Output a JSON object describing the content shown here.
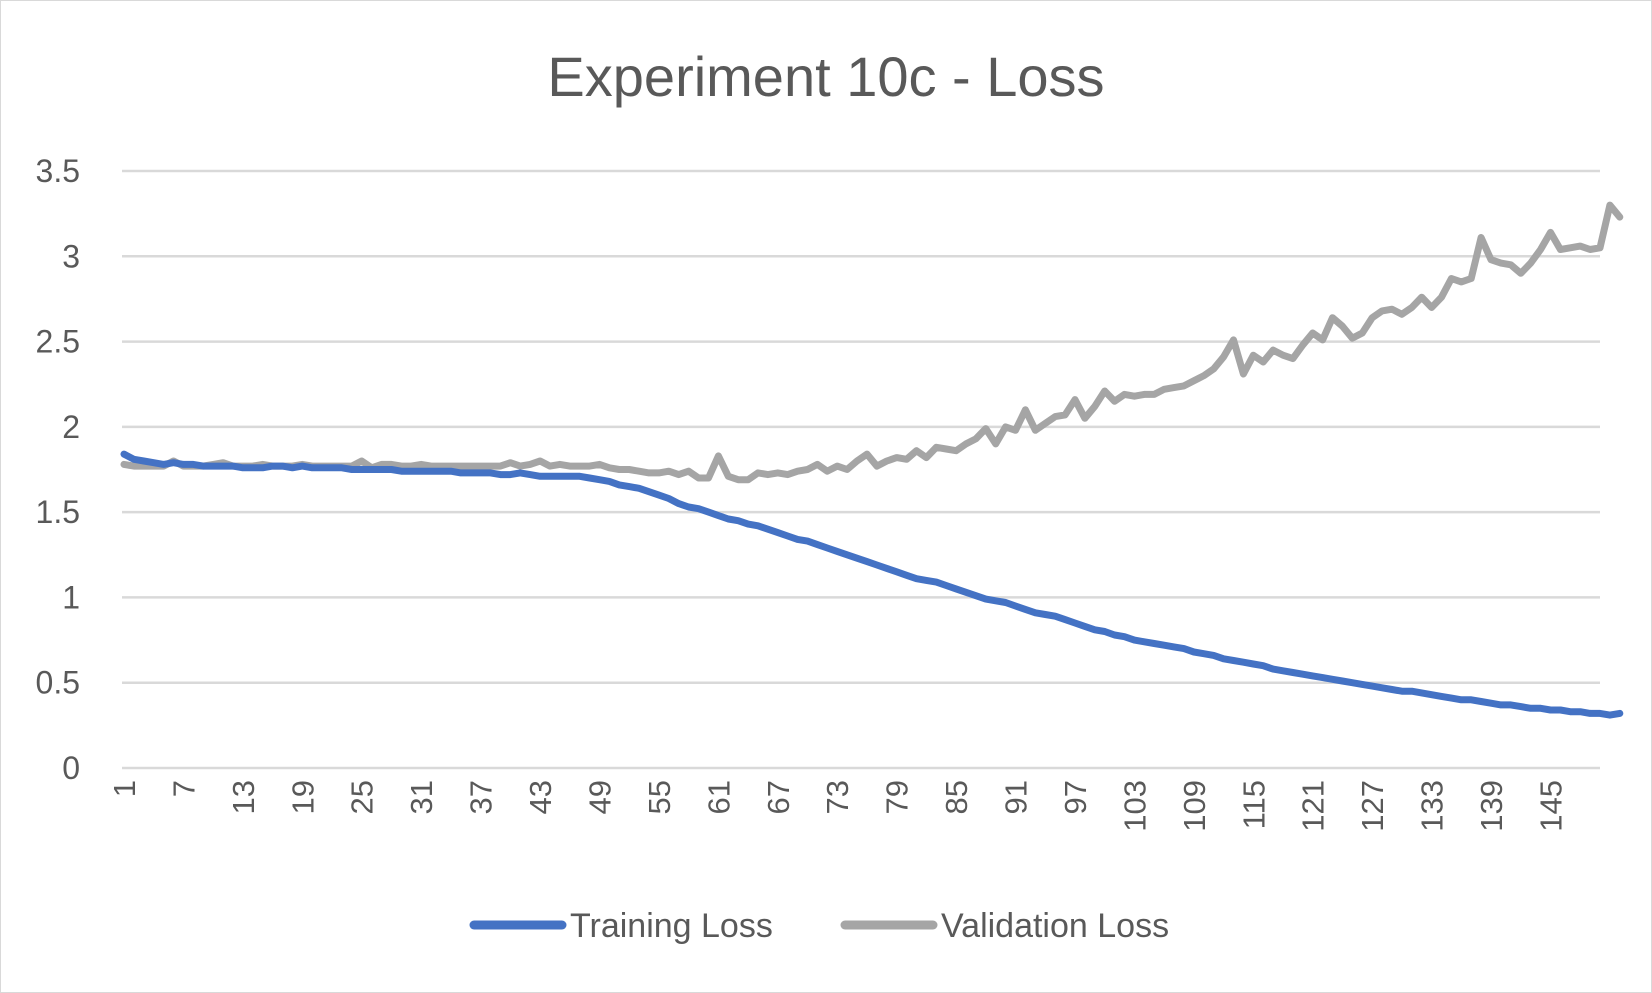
{
  "chart_data": {
    "type": "line",
    "title": "Experiment 10c - Loss",
    "xlabel": "",
    "ylabel": "",
    "ylim": [
      0,
      3.5
    ],
    "yticks": [
      "0",
      "0.5",
      "1",
      "1.5",
      "2",
      "2.5",
      "3",
      "3.5"
    ],
    "x_range": [
      1,
      150
    ],
    "xticks": [
      "1",
      "7",
      "13",
      "19",
      "25",
      "31",
      "37",
      "43",
      "49",
      "55",
      "61",
      "67",
      "73",
      "79",
      "85",
      "91",
      "97",
      "103",
      "109",
      "115",
      "121",
      "127",
      "133",
      "139",
      "145"
    ],
    "grid": "horizontal",
    "legend_position": "bottom",
    "series": [
      {
        "name": "Training Loss",
        "color": "#4472c4",
        "values": [
          1.84,
          1.81,
          1.8,
          1.79,
          1.78,
          1.79,
          1.78,
          1.78,
          1.77,
          1.77,
          1.77,
          1.77,
          1.76,
          1.76,
          1.76,
          1.77,
          1.77,
          1.76,
          1.77,
          1.76,
          1.76,
          1.76,
          1.76,
          1.75,
          1.75,
          1.75,
          1.75,
          1.75,
          1.74,
          1.74,
          1.74,
          1.74,
          1.74,
          1.74,
          1.73,
          1.73,
          1.73,
          1.73,
          1.72,
          1.72,
          1.73,
          1.72,
          1.71,
          1.71,
          1.71,
          1.71,
          1.71,
          1.7,
          1.69,
          1.68,
          1.66,
          1.65,
          1.64,
          1.62,
          1.6,
          1.58,
          1.55,
          1.53,
          1.52,
          1.5,
          1.48,
          1.46,
          1.45,
          1.43,
          1.42,
          1.4,
          1.38,
          1.36,
          1.34,
          1.33,
          1.31,
          1.29,
          1.27,
          1.25,
          1.23,
          1.21,
          1.19,
          1.17,
          1.15,
          1.13,
          1.11,
          1.1,
          1.09,
          1.07,
          1.05,
          1.03,
          1.01,
          0.99,
          0.98,
          0.97,
          0.95,
          0.93,
          0.91,
          0.9,
          0.89,
          0.87,
          0.85,
          0.83,
          0.81,
          0.8,
          0.78,
          0.77,
          0.75,
          0.74,
          0.73,
          0.72,
          0.71,
          0.7,
          0.68,
          0.67,
          0.66,
          0.64,
          0.63,
          0.62,
          0.61,
          0.6,
          0.58,
          0.57,
          0.56,
          0.55,
          0.54,
          0.53,
          0.52,
          0.51,
          0.5,
          0.49,
          0.48,
          0.47,
          0.46,
          0.45,
          0.45,
          0.44,
          0.43,
          0.42,
          0.41,
          0.4,
          0.4,
          0.39,
          0.38,
          0.37,
          0.37,
          0.36,
          0.35,
          0.35,
          0.34,
          0.34,
          0.33,
          0.33,
          0.32,
          0.32,
          0.31,
          0.32
        ]
      },
      {
        "name": "Validation Loss",
        "color": "#a5a5a5",
        "values": [
          1.78,
          1.77,
          1.77,
          1.77,
          1.77,
          1.8,
          1.77,
          1.77,
          1.77,
          1.78,
          1.79,
          1.77,
          1.77,
          1.77,
          1.78,
          1.77,
          1.77,
          1.77,
          1.78,
          1.77,
          1.77,
          1.77,
          1.77,
          1.77,
          1.8,
          1.76,
          1.78,
          1.78,
          1.77,
          1.77,
          1.78,
          1.77,
          1.77,
          1.77,
          1.77,
          1.77,
          1.77,
          1.77,
          1.77,
          1.79,
          1.77,
          1.78,
          1.8,
          1.77,
          1.78,
          1.77,
          1.77,
          1.77,
          1.78,
          1.76,
          1.75,
          1.75,
          1.74,
          1.73,
          1.73,
          1.74,
          1.72,
          1.74,
          1.7,
          1.7,
          1.83,
          1.71,
          1.69,
          1.69,
          1.73,
          1.72,
          1.73,
          1.72,
          1.74,
          1.75,
          1.78,
          1.74,
          1.77,
          1.75,
          1.8,
          1.84,
          1.77,
          1.8,
          1.82,
          1.81,
          1.86,
          1.82,
          1.88,
          1.87,
          1.86,
          1.9,
          1.93,
          1.99,
          1.9,
          2.0,
          1.98,
          2.1,
          1.98,
          2.02,
          2.06,
          2.07,
          2.16,
          2.05,
          2.12,
          2.21,
          2.15,
          2.19,
          2.18,
          2.19,
          2.19,
          2.22,
          2.23,
          2.24,
          2.27,
          2.3,
          2.34,
          2.41,
          2.51,
          2.31,
          2.42,
          2.38,
          2.45,
          2.42,
          2.4,
          2.48,
          2.55,
          2.51,
          2.64,
          2.59,
          2.52,
          2.55,
          2.64,
          2.68,
          2.69,
          2.66,
          2.7,
          2.76,
          2.7,
          2.76,
          2.87,
          2.85,
          2.87,
          3.11,
          2.98,
          2.96,
          2.95,
          2.9,
          2.96,
          3.04,
          3.14,
          3.04,
          3.05,
          3.06,
          3.04,
          3.05,
          3.3,
          3.23
        ]
      }
    ]
  }
}
